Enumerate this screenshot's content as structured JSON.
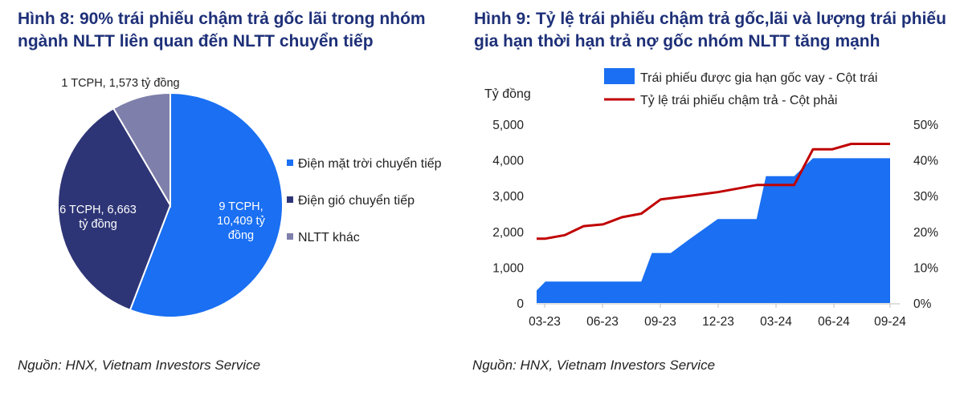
{
  "left_panel": {
    "title": "Hình 8: 90% trái phiếu chậm trả gốc lãi trong nhóm ngành NLTT liên quan đến NLTT chuyển tiếp",
    "source": "Nguồn: HNX, Vietnam Investors Service"
  },
  "right_panel": {
    "title": "Hình 9: Tỷ lệ trái phiếu chậm trả gốc,lãi và lượng trái phiếu gia hạn thời hạn trả nợ gốc nhóm NLTT tăng mạnh",
    "source": "Nguồn: HNX, Vietnam Investors Service"
  },
  "chart_data": [
    {
      "type": "pie",
      "slices": [
        {
          "name": "Điện mặt trời chuyển tiếp",
          "value": 10409,
          "label_lines": [
            "9 TCPH,",
            "10,409 tỷ",
            "đồng"
          ],
          "color": "#1a6ff2"
        },
        {
          "name": "Điện gió chuyển tiếp",
          "value": 6663,
          "label_lines": [
            "6 TCPH, 6,663",
            "tỷ đồng"
          ],
          "color": "#2e3576"
        },
        {
          "name": "NLTT khác",
          "value": 1573,
          "label_lines": [
            "1 TCPH, 1,573 tỷ đồng"
          ],
          "color": "#7f7fab"
        }
      ],
      "legend": [
        "Điện mặt trời chuyển tiếp",
        "Điện gió chuyển tiếp",
        "NLTT khác"
      ],
      "legend_position": "right"
    },
    {
      "type": "area",
      "y_left_label": "Tỷ đồng",
      "y_left_ticks": [
        "5,000",
        "4,000",
        "3,000",
        "2,000",
        "1,000",
        "0"
      ],
      "y_left_lim": [
        0,
        5000
      ],
      "y_right_ticks": [
        "50%",
        "40%",
        "30%",
        "20%",
        "10%",
        "0%"
      ],
      "y_right_lim": [
        0,
        50
      ],
      "x_ticks": [
        "03-23",
        "06-23",
        "09-23",
        "12-23",
        "03-24",
        "06-24",
        "09-24"
      ],
      "x_range_months": [
        "2023-03",
        "2024-09"
      ],
      "series": [
        {
          "name": "Trái phiếu được gia hạn gốc vay - Cột trái",
          "type": "area",
          "axis": "left",
          "color": "#1a6ff2",
          "points": [
            [
              "2023-03-01",
              350
            ],
            [
              "2023-03-15",
              600
            ],
            [
              "2023-05-01",
              600
            ],
            [
              "2023-07-01",
              600
            ],
            [
              "2023-08-15",
              600
            ],
            [
              "2023-09-01",
              1400
            ],
            [
              "2023-10-01",
              1400
            ],
            [
              "2023-11-01",
              1800
            ],
            [
              "2023-12-15",
              2350
            ],
            [
              "2024-01-15",
              2350
            ],
            [
              "2024-02-15",
              2350
            ],
            [
              "2024-03-01",
              3550
            ],
            [
              "2024-04-15",
              3550
            ],
            [
              "2024-05-15",
              4050
            ],
            [
              "2024-07-15",
              4050
            ],
            [
              "2024-08-15",
              4050
            ],
            [
              "2024-09-15",
              4050
            ]
          ]
        },
        {
          "name": "Tỷ lệ trái phiếu chậm trả - Cột phải",
          "type": "line",
          "axis": "right",
          "color": "#c00000",
          "points": [
            [
              "2023-03-01",
              18
            ],
            [
              "2023-03-15",
              18
            ],
            [
              "2023-04-15",
              19
            ],
            [
              "2023-05-15",
              21.5
            ],
            [
              "2023-06-15",
              22
            ],
            [
              "2023-07-15",
              24
            ],
            [
              "2023-08-15",
              25
            ],
            [
              "2023-09-15",
              29
            ],
            [
              "2023-11-01",
              30
            ],
            [
              "2023-12-15",
              31
            ],
            [
              "2024-01-15",
              32
            ],
            [
              "2024-02-15",
              33
            ],
            [
              "2024-03-15",
              33
            ],
            [
              "2024-04-15",
              33
            ],
            [
              "2024-05-15",
              43
            ],
            [
              "2024-06-15",
              43
            ],
            [
              "2024-07-15",
              44.5
            ],
            [
              "2024-08-15",
              44.5
            ],
            [
              "2024-09-15",
              44.5
            ]
          ]
        }
      ],
      "legend_position": "top",
      "grid": false
    }
  ]
}
